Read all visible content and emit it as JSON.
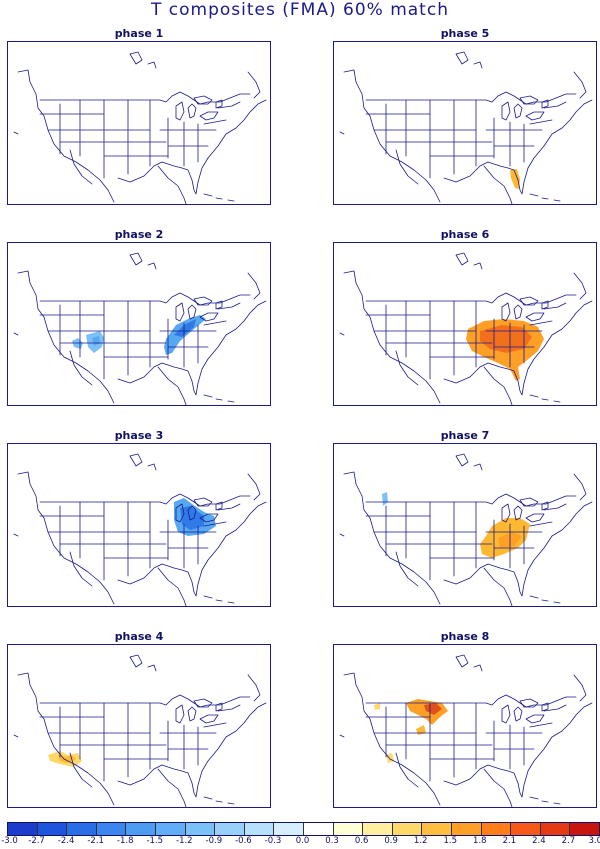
{
  "title": "T composites (FMA)   60% match",
  "map_type": "temperature composite anomaly, continental US",
  "panels": [
    {
      "label": "phase 1",
      "anomaly": null
    },
    {
      "label": "phase 5",
      "anomaly": "warm (Florida)"
    },
    {
      "label": "phase 2",
      "anomaly": "cold (Southwest, Ohio Valley)"
    },
    {
      "label": "phase 6",
      "anomaly": "warm (Southeast, strong)"
    },
    {
      "label": "phase 3",
      "anomaly": "cold (Michigan / Ohio)"
    },
    {
      "label": "phase 7",
      "anomaly": "warm (Tennessee / Southeast)"
    },
    {
      "label": "phase 4",
      "anomaly": "warm (lower Colorado River)"
    },
    {
      "label": "phase 8",
      "anomaly": "warm (Northern Plains), mixed"
    }
  ],
  "colorbar": {
    "labels": [
      "-3.0",
      "-2.7",
      "-2.4",
      "-2.1",
      "-1.8",
      "-1.5",
      "-1.2",
      "-0.9",
      "-0.6",
      "-0.3",
      "0.0",
      "0.3",
      "0.6",
      "0.9",
      "1.2",
      "1.5",
      "1.8",
      "2.1",
      "2.4",
      "2.7",
      "3.0"
    ],
    "colors": [
      "#1c3ccc",
      "#1e55dc",
      "#2a6ee6",
      "#3a86ee",
      "#4c9cf2",
      "#62aef6",
      "#7cc0f8",
      "#98d0fa",
      "#b6e0fc",
      "#d6eefd",
      "#ffffff",
      "#ffffd6",
      "#ffef9e",
      "#ffd86a",
      "#ffbe40",
      "#ffa026",
      "#ff7e1c",
      "#f75a16",
      "#e63a12",
      "#c8160e"
    ]
  },
  "palette": {
    "border": "#1a1a8c",
    "cold_strong": "#2f7ae6",
    "cold": "#56a8f0",
    "cold_light": "#7cc0f8",
    "warm_light": "#ffd86a",
    "warm": "#ffb830",
    "warm_strong": "#ff9a28",
    "hot": "#f2701c",
    "hotter": "#e0501a"
  }
}
